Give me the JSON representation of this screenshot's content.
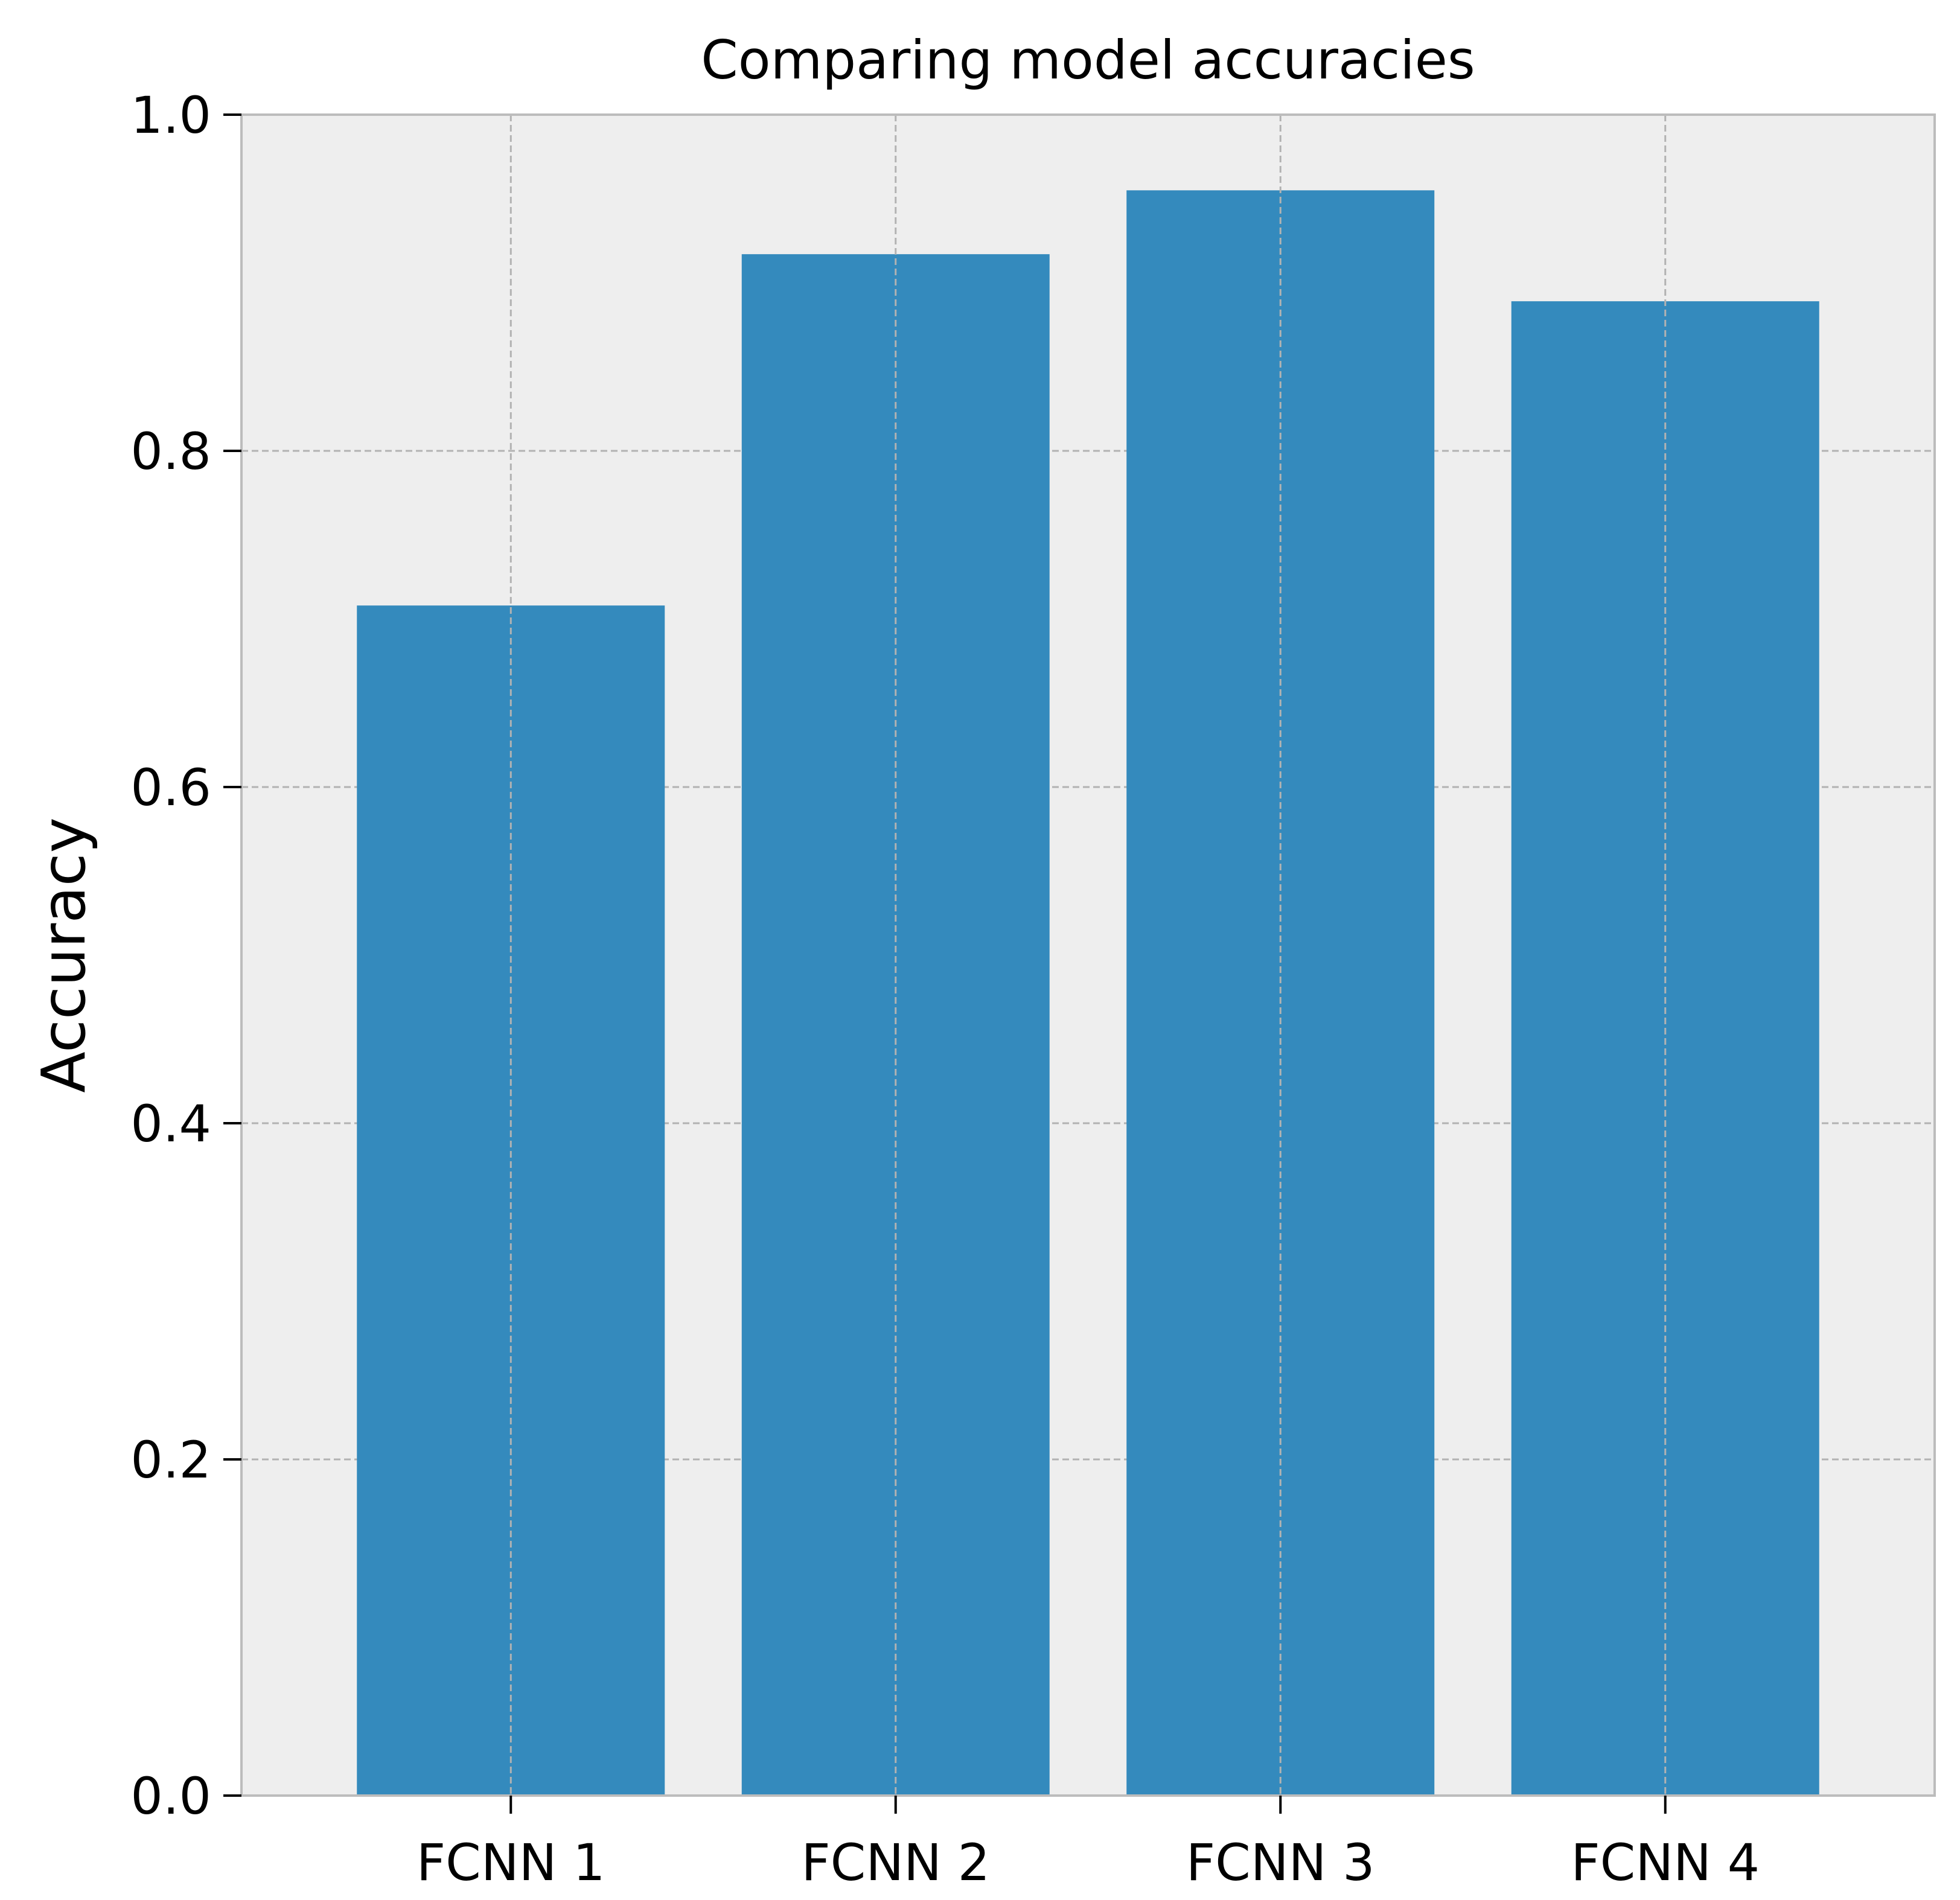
{
  "chart_data": {
    "type": "bar",
    "title": "Comparing model accuracies",
    "xlabel": "",
    "ylabel": "Accuracy",
    "categories": [
      "FCNN 1",
      "FCNN 2",
      "FCNN 3",
      "FCNN 4"
    ],
    "values": [
      0.708,
      0.917,
      0.955,
      0.889
    ],
    "ylim": [
      0.0,
      1.0
    ],
    "yticks": [
      "0.0",
      "0.2",
      "0.4",
      "0.6",
      "0.8",
      "1.0"
    ],
    "grid": true,
    "legend": "none"
  },
  "colors": {
    "bar": "#348abd",
    "plot_background": "#eeeeee",
    "grid": "#b2b2b2",
    "frame": "#bcbcbc"
  }
}
